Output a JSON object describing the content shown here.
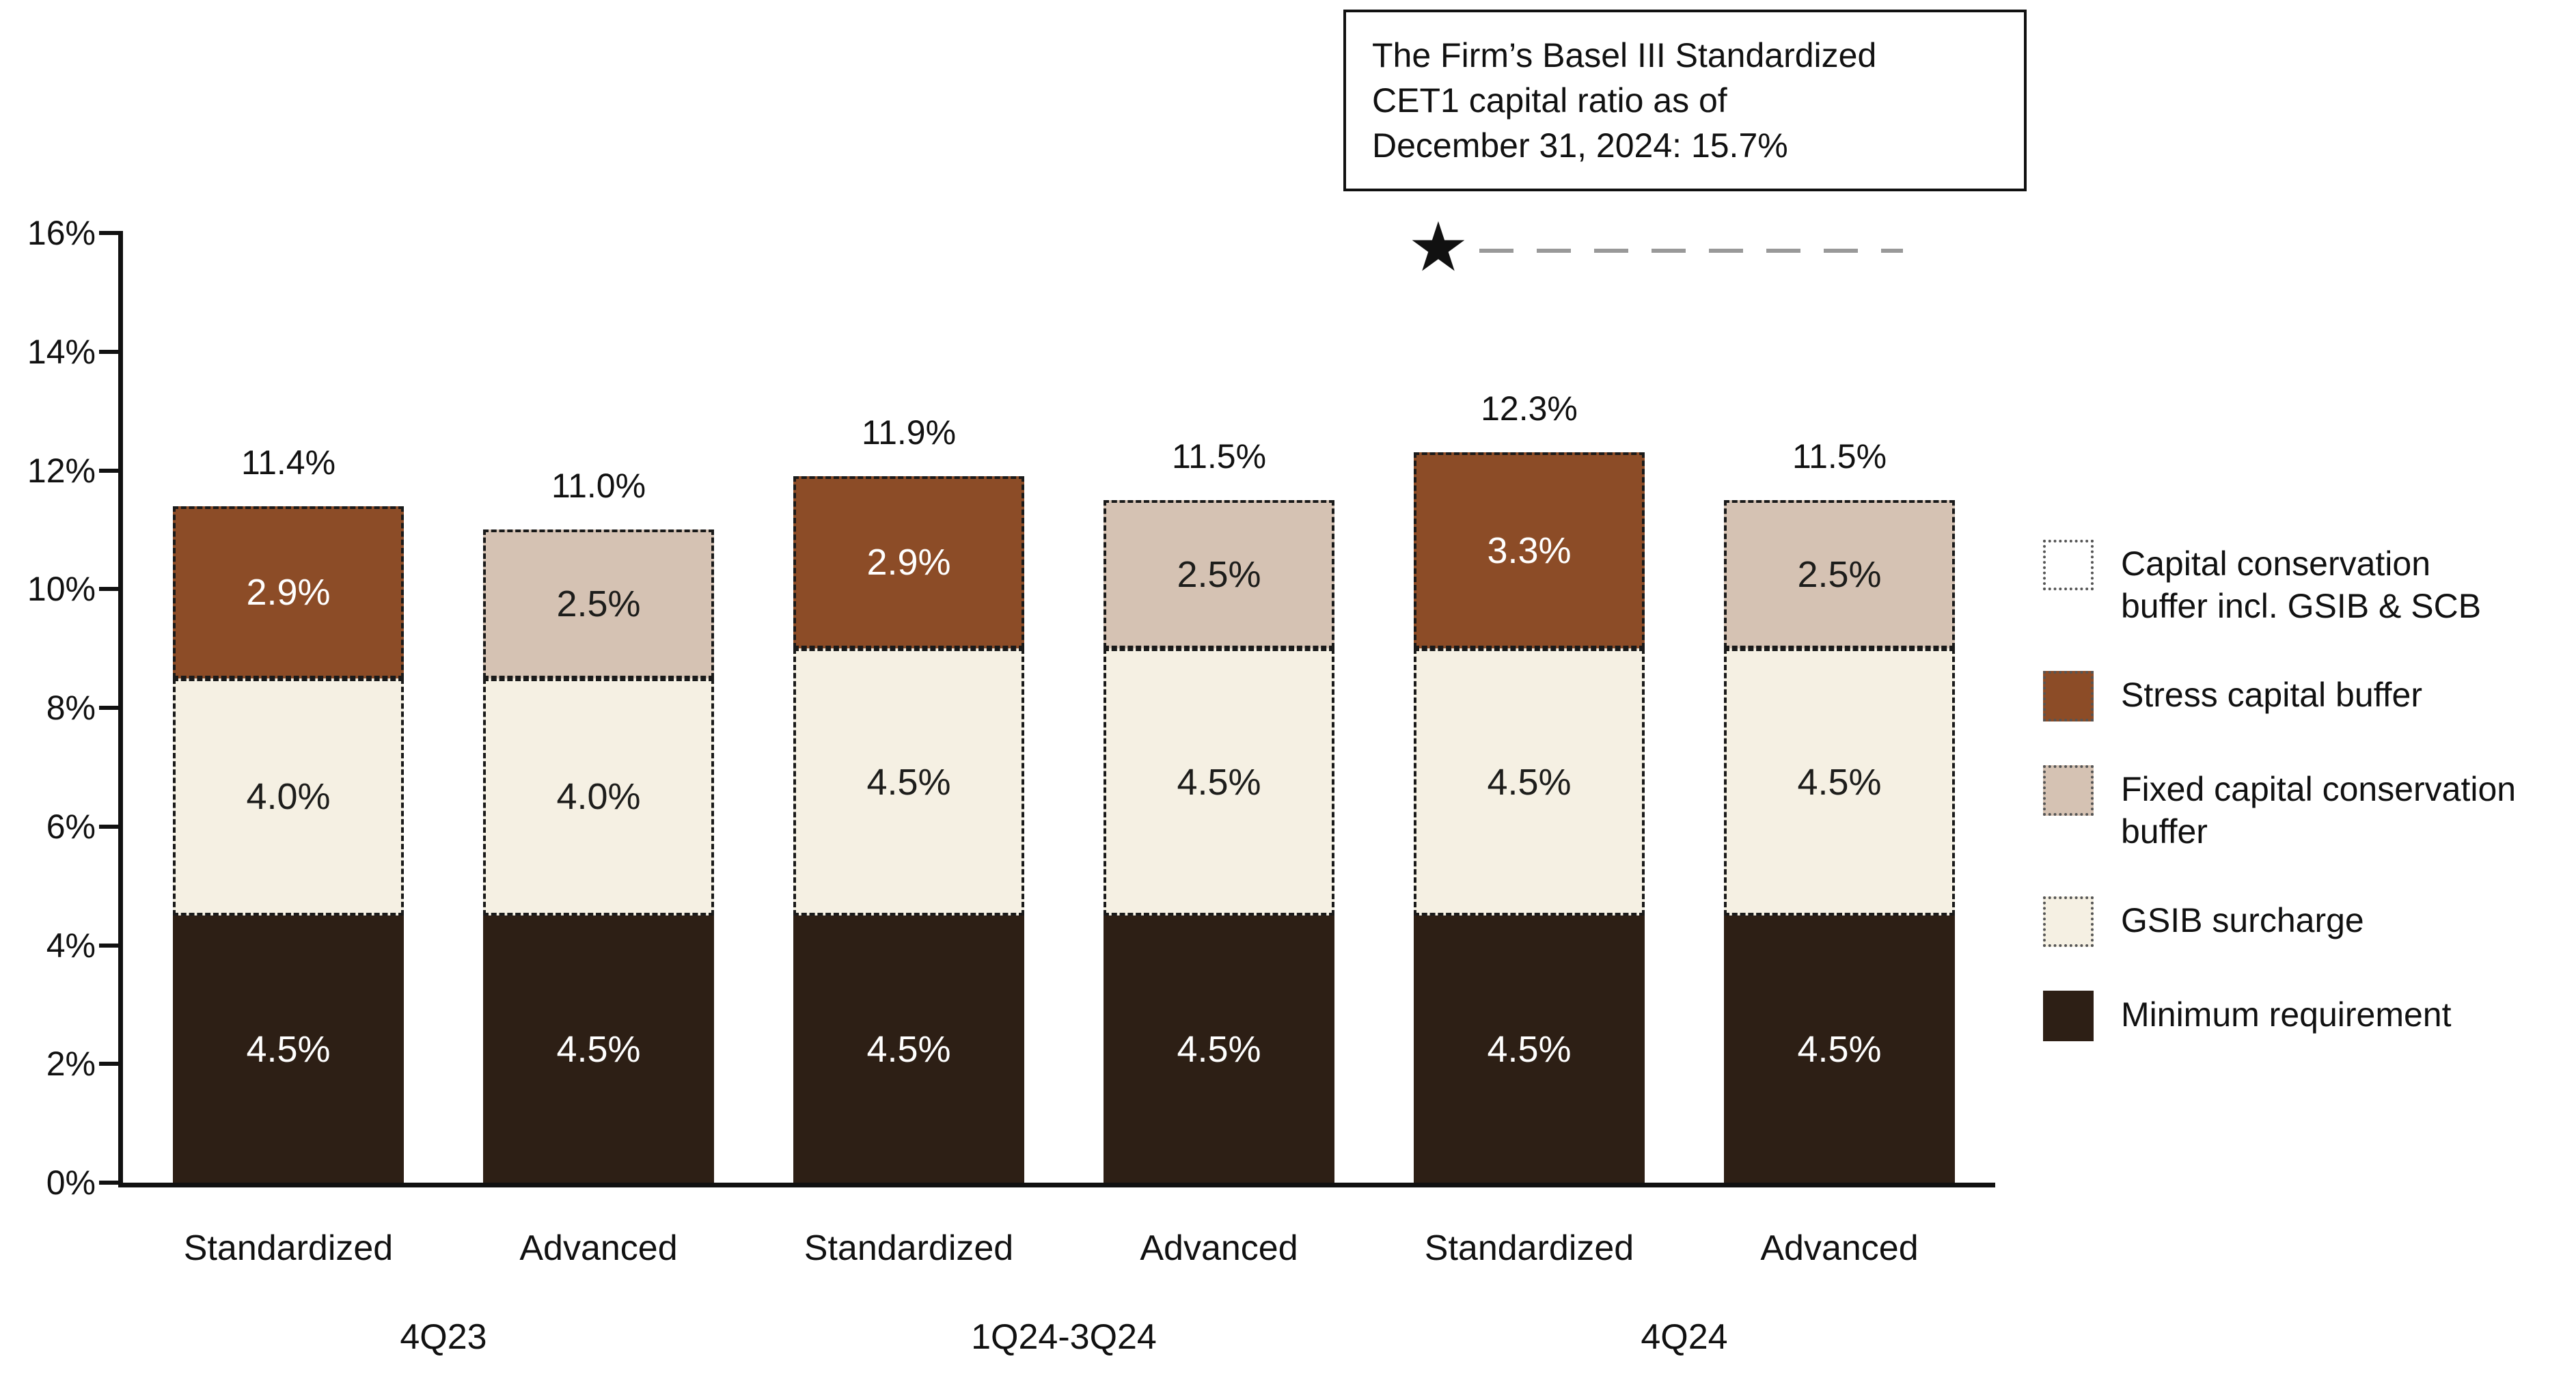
{
  "annotation": {
    "lines": [
      "The Firm’s Basel III Standardized",
      "CET1 capital ratio as of",
      "December 31, 2024: 15.7%"
    ]
  },
  "chart_data": {
    "type": "stacked-bar",
    "title": "",
    "xlabel": "",
    "ylabel": "",
    "ylim": [
      0,
      16
    ],
    "ytick_step": 2,
    "ytick_suffix": "%",
    "grid": false,
    "legend_position": "right",
    "marker": {
      "symbol": "star",
      "glyph": "★",
      "value": 15.7,
      "note": "The Firm’s Basel III Standardized CET1 capital ratio as of December 31, 2024: 15.7%"
    },
    "segment_keys": {
      "min": "Minimum requirement",
      "gsib": "GSIB surcharge",
      "scb": "Stress capital buffer",
      "fixed": "Fixed capital conservation buffer",
      "ccb": "Capital conservation buffer incl. GSIB & SCB"
    },
    "bars": [
      {
        "group": "4Q23",
        "label": "Standardized",
        "total": 11.4,
        "total_label": "11.4%",
        "segments": [
          {
            "key": "min",
            "value": 4.5,
            "label": "4.5%"
          },
          {
            "key": "gsib",
            "value": 4.0,
            "label": "4.0%"
          },
          {
            "key": "scb",
            "value": 2.9,
            "label": "2.9%"
          }
        ]
      },
      {
        "group": "4Q23",
        "label": "Advanced",
        "total": 11.0,
        "total_label": "11.0%",
        "segments": [
          {
            "key": "min",
            "value": 4.5,
            "label": "4.5%"
          },
          {
            "key": "gsib",
            "value": 4.0,
            "label": "4.0%"
          },
          {
            "key": "fixed",
            "value": 2.5,
            "label": "2.5%"
          }
        ]
      },
      {
        "group": "1Q24-3Q24",
        "label": "Standardized",
        "total": 11.9,
        "total_label": "11.9%",
        "segments": [
          {
            "key": "min",
            "value": 4.5,
            "label": "4.5%"
          },
          {
            "key": "gsib",
            "value": 4.5,
            "label": "4.5%"
          },
          {
            "key": "scb",
            "value": 2.9,
            "label": "2.9%"
          }
        ]
      },
      {
        "group": "1Q24-3Q24",
        "label": "Advanced",
        "total": 11.5,
        "total_label": "11.5%",
        "segments": [
          {
            "key": "min",
            "value": 4.5,
            "label": "4.5%"
          },
          {
            "key": "gsib",
            "value": 4.5,
            "label": "4.5%"
          },
          {
            "key": "fixed",
            "value": 2.5,
            "label": "2.5%"
          }
        ]
      },
      {
        "group": "4Q24",
        "label": "Standardized",
        "total": 12.3,
        "total_label": "12.3%",
        "segments": [
          {
            "key": "min",
            "value": 4.5,
            "label": "4.5%"
          },
          {
            "key": "gsib",
            "value": 4.5,
            "label": "4.5%"
          },
          {
            "key": "scb",
            "value": 3.3,
            "label": "3.3%"
          }
        ]
      },
      {
        "group": "4Q24",
        "label": "Advanced",
        "total": 11.5,
        "total_label": "11.5%",
        "segments": [
          {
            "key": "min",
            "value": 4.5,
            "label": "4.5%"
          },
          {
            "key": "gsib",
            "value": 4.5,
            "label": "4.5%"
          },
          {
            "key": "fixed",
            "value": 2.5,
            "label": "2.5%"
          }
        ]
      }
    ],
    "group_labels": [
      "4Q23",
      "1Q24-3Q24",
      "4Q24"
    ],
    "legend": [
      {
        "label": "Capital conservation buffer incl. GSIB & SCB",
        "swatch": "ccb"
      },
      {
        "label": "Stress capital buffer",
        "swatch": "scb"
      },
      {
        "label": "Fixed capital conservation buffer",
        "swatch": "fixed"
      },
      {
        "label": "GSIB surcharge",
        "swatch": "gsib"
      },
      {
        "label": "Minimum requirement",
        "swatch": "min"
      }
    ],
    "colors": {
      "fills": {
        "min": "#2D1F15",
        "gsib": "#F5F0E3",
        "scb": "#8C4C27",
        "fixed": "#D5C2B3",
        "ccb": "#FFFFFF"
      },
      "text_on": {
        "min": "#FFFFFF",
        "gsib": "#1D1D1B",
        "scb": "#FFFFFF",
        "fixed": "#1D1D1B"
      },
      "segment_border": "#1A1A1A",
      "axis": "#111111",
      "marker_line": "#999999",
      "marker_star": "#111111",
      "text": "#111111"
    }
  }
}
